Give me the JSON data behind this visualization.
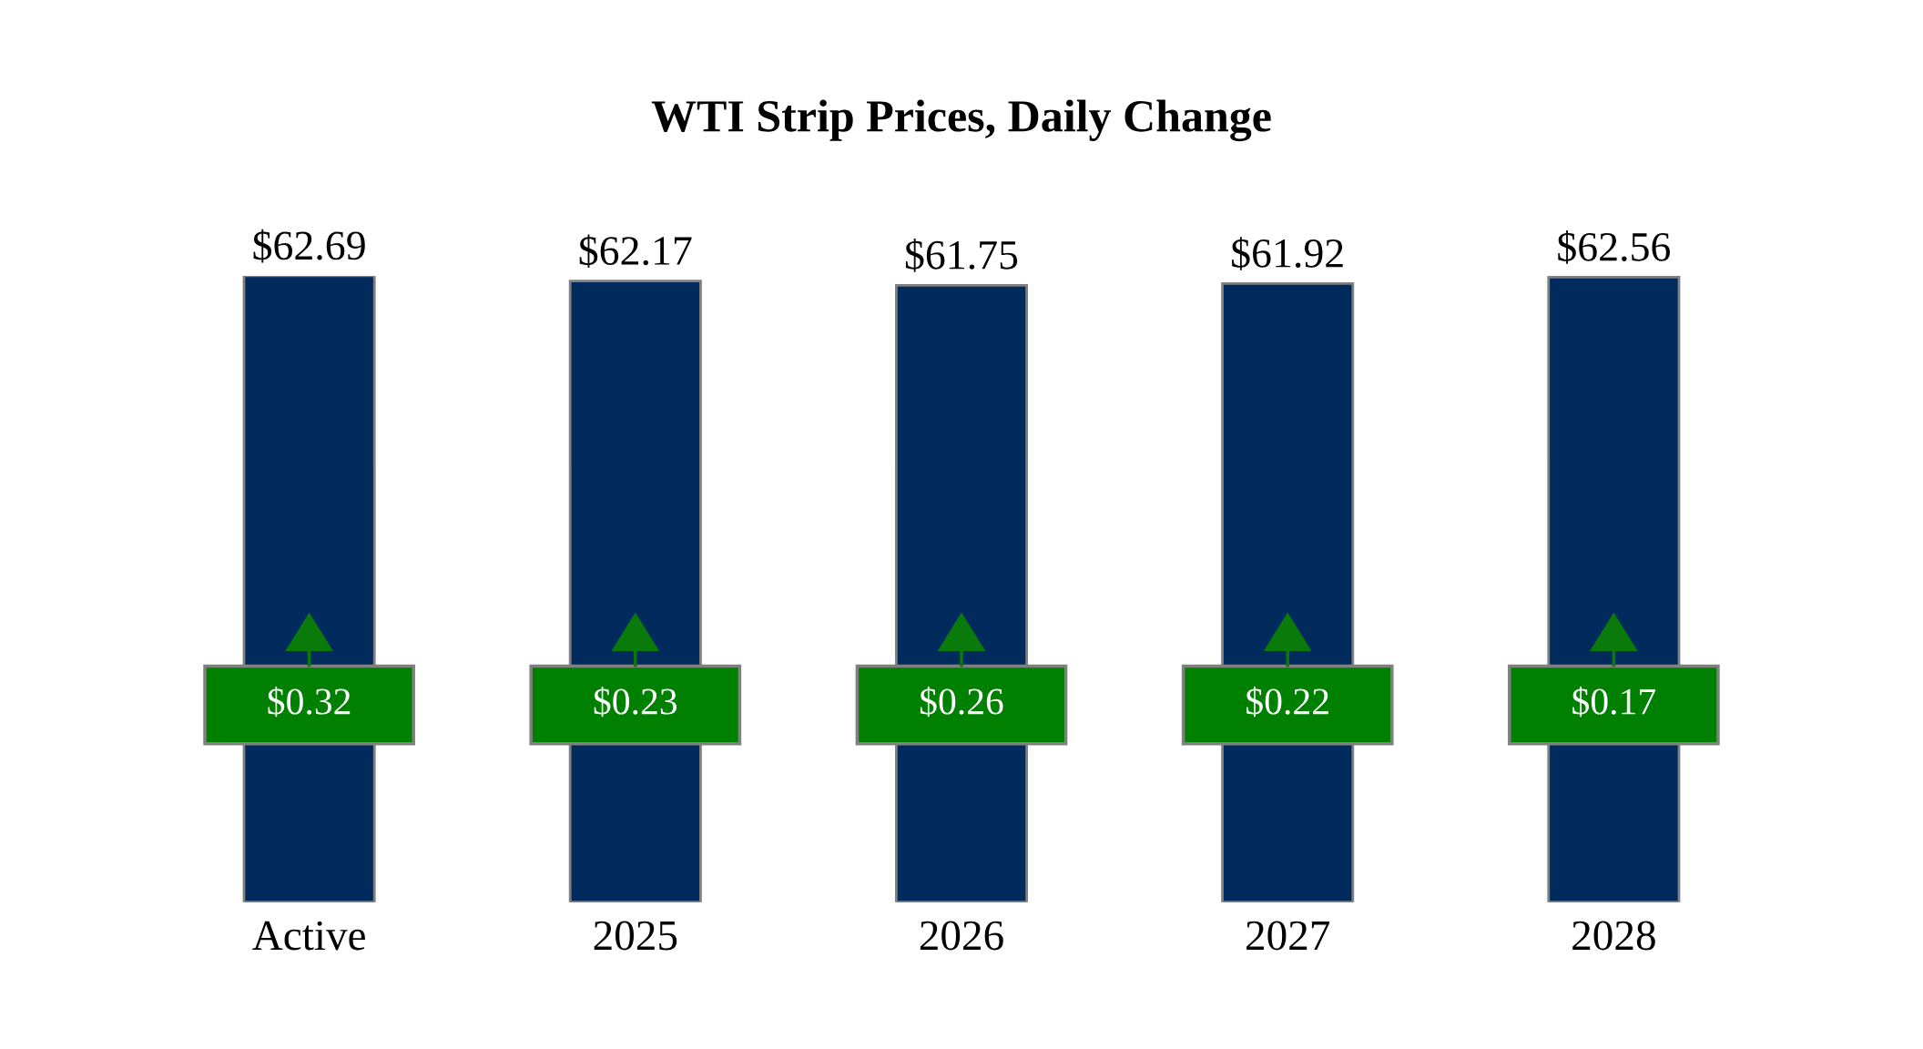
{
  "chart_data": {
    "type": "bar",
    "title": "WTI Strip Prices, Daily Change",
    "categories": [
      "Active",
      "2025",
      "2026",
      "2027",
      "2028"
    ],
    "values": [
      62.69,
      62.17,
      61.75,
      61.92,
      62.56
    ],
    "color": "#002b5c",
    "value_labels": [
      "$62.69",
      "$62.17",
      "$61.75",
      "$61.92",
      "$62.56"
    ],
    "annotations": [
      "$0.32",
      "$0.23",
      "$0.26",
      "$0.22",
      "$0.17"
    ],
    "grid": false,
    "legend": false
  }
}
